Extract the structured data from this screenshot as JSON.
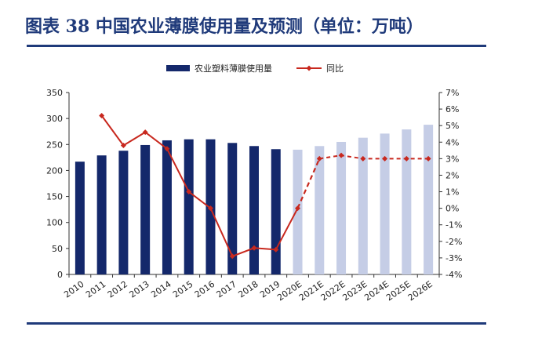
{
  "title": "图表 38   中国农业薄膜使用量及预测（单位：万吨）",
  "colors": {
    "title": "#1f3a7a",
    "bar_actual": "#14286b",
    "bar_forecast": "#c5cde6",
    "line": "#c8281e",
    "axis": "#333333"
  },
  "chart_data": {
    "type": "bar",
    "categories": [
      "2010",
      "2011",
      "2012",
      "2013",
      "2014",
      "2015",
      "2016",
      "2017",
      "2018",
      "2019",
      "2020E",
      "2021E",
      "2022E",
      "2023E",
      "2024E",
      "2025E",
      "2026E"
    ],
    "forecast_start_index": 10,
    "series": [
      {
        "name": "农业塑料薄膜使用量",
        "axis": "left",
        "type": "bar",
        "values": [
          217,
          229,
          238,
          249,
          258,
          260,
          260,
          253,
          247,
          241,
          240,
          247,
          255,
          263,
          271,
          279,
          288
        ]
      },
      {
        "name": "同比",
        "axis": "right",
        "type": "line",
        "unit": "%",
        "values": [
          null,
          5.6,
          3.8,
          4.6,
          3.6,
          1.0,
          0.0,
          -2.9,
          -2.4,
          -2.5,
          0.0,
          3.0,
          3.2,
          3.0,
          3.0,
          3.0,
          3.0
        ]
      }
    ],
    "y_left": {
      "min": 0,
      "max": 350,
      "ticks": [
        "0",
        "50",
        "100",
        "150",
        "200",
        "250",
        "300",
        "350"
      ]
    },
    "y_right": {
      "min": -4,
      "max": 7,
      "ticks": [
        "-4%",
        "-3%",
        "-2%",
        "-1%",
        "0%",
        "1%",
        "2%",
        "3%",
        "4%",
        "5%",
        "6%",
        "7%"
      ]
    },
    "legend_position": "top",
    "grid": false
  }
}
